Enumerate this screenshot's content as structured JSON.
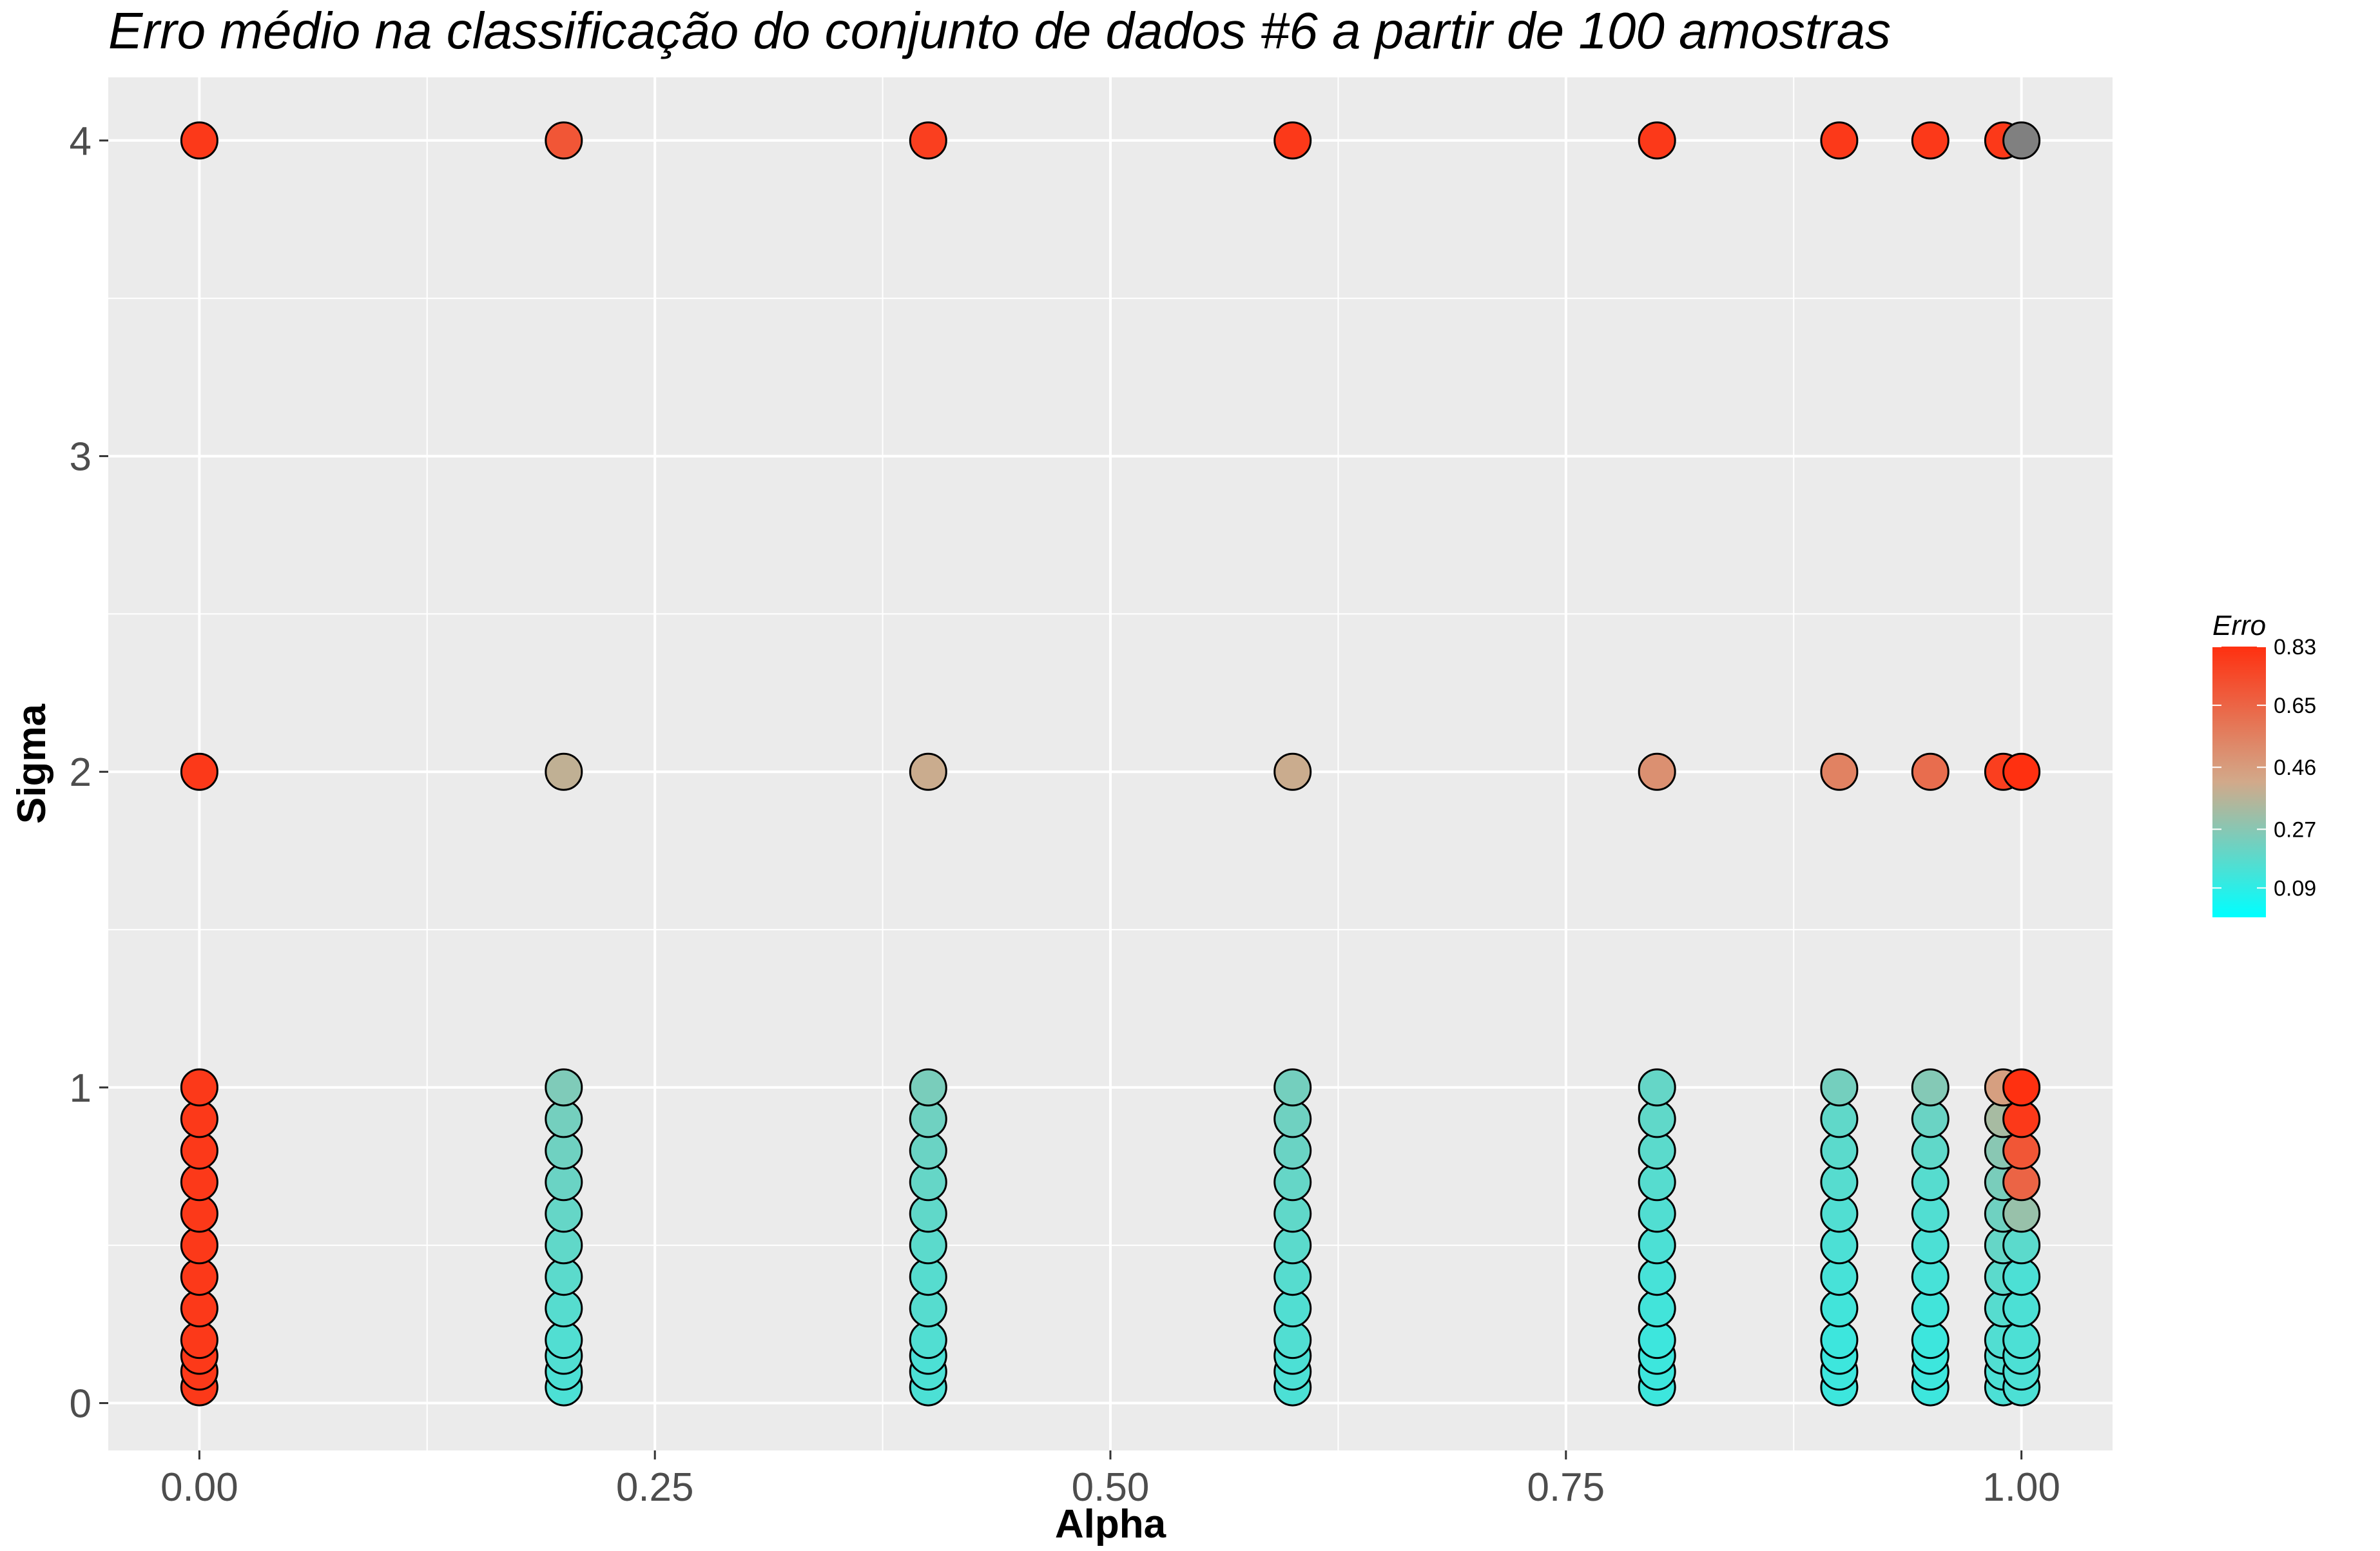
{
  "chart_data": {
    "type": "scatter",
    "title": "Erro médio na classificação do conjunto de dados #6 a partir de 100 amostras",
    "xlabel": "Alpha",
    "ylabel": "Sigma",
    "xlim": [
      -0.05,
      1.05
    ],
    "ylim": [
      -0.15,
      4.2
    ],
    "xticks": [
      0,
      0.25,
      0.5,
      0.75,
      1
    ],
    "xtick_labels": [
      "0.00",
      "0.25",
      "0.50",
      "0.75",
      "1.00"
    ],
    "yticks": [
      0,
      1,
      2,
      3,
      4
    ],
    "ytick_labels": [
      "0",
      "1",
      "2",
      "3",
      "4"
    ],
    "grid": true,
    "color_scale": {
      "name": "Erro",
      "min": 0.0,
      "max": 0.83,
      "low_color": "#00ffff",
      "mid_color": "#d2a98a",
      "high_color": "#ff3010",
      "ticks": [
        0.83,
        0.65,
        0.46,
        0.27,
        0.09
      ],
      "tick_labels": [
        "0.83",
        "0.65",
        "0.46",
        "0.27",
        "0.09"
      ],
      "legend_position": "right"
    },
    "na_color": "#808080",
    "sigma_values": [
      0.05,
      0.1,
      0.15,
      0.2,
      0.3,
      0.4,
      0.5,
      0.6,
      0.7,
      0.8,
      0.9,
      1,
      2,
      4
    ],
    "series": [
      {
        "alpha": 0.0,
        "erro": [
          0.8,
          0.8,
          0.8,
          0.8,
          0.8,
          0.8,
          0.8,
          0.8,
          0.8,
          0.8,
          0.8,
          0.8,
          0.8,
          0.8
        ]
      },
      {
        "alpha": 0.2,
        "erro": [
          0.15,
          0.15,
          0.16,
          0.16,
          0.17,
          0.18,
          0.19,
          0.2,
          0.21,
          0.22,
          0.23,
          0.25,
          0.38,
          0.7
        ]
      },
      {
        "alpha": 0.4,
        "erro": [
          0.15,
          0.15,
          0.15,
          0.16,
          0.17,
          0.17,
          0.18,
          0.19,
          0.2,
          0.21,
          0.22,
          0.24,
          0.4,
          0.78
        ]
      },
      {
        "alpha": 0.6,
        "erro": [
          0.15,
          0.15,
          0.15,
          0.16,
          0.16,
          0.17,
          0.18,
          0.19,
          0.2,
          0.21,
          0.22,
          0.23,
          0.4,
          0.8
        ]
      },
      {
        "alpha": 0.8,
        "erro": [
          0.12,
          0.12,
          0.12,
          0.12,
          0.13,
          0.14,
          0.15,
          0.16,
          0.17,
          0.18,
          0.19,
          0.2,
          0.5,
          0.8
        ]
      },
      {
        "alpha": 0.9,
        "erro": [
          0.12,
          0.12,
          0.12,
          0.12,
          0.13,
          0.14,
          0.15,
          0.16,
          0.17,
          0.18,
          0.19,
          0.23,
          0.55,
          0.8
        ]
      },
      {
        "alpha": 0.95,
        "erro": [
          0.12,
          0.12,
          0.12,
          0.12,
          0.13,
          0.14,
          0.15,
          0.16,
          0.17,
          0.19,
          0.21,
          0.26,
          0.62,
          0.8
        ]
      },
      {
        "alpha": 0.99,
        "erro": [
          0.15,
          0.15,
          0.16,
          0.16,
          0.17,
          0.18,
          0.2,
          0.22,
          0.24,
          0.27,
          0.33,
          0.45,
          0.78,
          0.8
        ]
      },
      {
        "alpha": 1.0,
        "erro": [
          0.15,
          0.15,
          0.15,
          0.15,
          0.15,
          0.15,
          0.18,
          0.3,
          0.65,
          0.7,
          0.8,
          0.83,
          0.83,
          null
        ]
      }
    ]
  }
}
